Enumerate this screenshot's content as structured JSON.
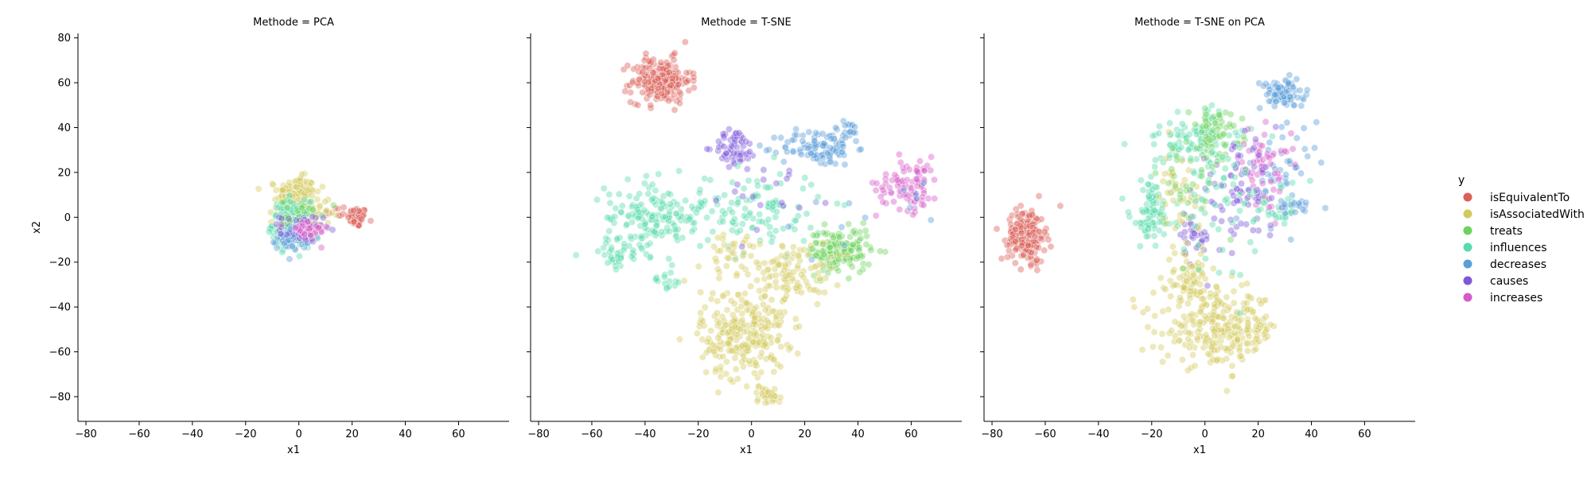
{
  "chart_data": {
    "type": "scatter",
    "facet_prefix": "Methode = ",
    "xlabel": "x1",
    "ylabel": "x2",
    "xlim": [
      -83,
      79
    ],
    "ylim": [
      -91,
      82
    ],
    "xticks": [
      -80,
      -60,
      -40,
      -20,
      0,
      20,
      40,
      60
    ],
    "yticks": [
      -80,
      -60,
      -40,
      -20,
      0,
      20,
      40,
      60,
      80
    ],
    "sharey": true,
    "legend": {
      "title": "y",
      "placement": "right",
      "entries": [
        {
          "name": "isEquivalentTo",
          "color": "#db5f57"
        },
        {
          "name": "isAssociatedWith",
          "color": "#d3ca5f"
        },
        {
          "name": "treats",
          "color": "#6dd35d"
        },
        {
          "name": "influences",
          "color": "#57dbab"
        },
        {
          "name": "decreases",
          "color": "#5a9ed8"
        },
        {
          "name": "causes",
          "color": "#7e57db"
        },
        {
          "name": "increases",
          "color": "#d65bc8"
        }
      ]
    },
    "panels": [
      {
        "method": "PCA",
        "title": "Methode = PCA",
        "clusters": [
          {
            "series": "isEquivalentTo",
            "cx": 22,
            "cy": 0,
            "sx": 1.8,
            "sy": 2.2,
            "n": 70
          },
          {
            "series": "isEquivalentTo",
            "cx": 14,
            "cy": 3,
            "sx": 2,
            "sy": 2,
            "n": 8
          },
          {
            "series": "isAssociatedWith",
            "cx": -1,
            "cy": 11,
            "sx": 3.5,
            "sy": 3.5,
            "n": 160
          },
          {
            "series": "isAssociatedWith",
            "cx": 2,
            "cy": 2,
            "sx": 5,
            "sy": 5,
            "n": 80
          },
          {
            "series": "influences",
            "cx": -3,
            "cy": -3,
            "sx": 3.5,
            "sy": 5,
            "n": 190
          },
          {
            "series": "treats",
            "cx": 1,
            "cy": 0,
            "sx": 4,
            "sy": 4,
            "n": 40
          },
          {
            "series": "decreases",
            "cx": -2,
            "cy": -9,
            "sx": 3,
            "sy": 2.5,
            "n": 90
          },
          {
            "series": "causes",
            "cx": 1,
            "cy": -5,
            "sx": 4,
            "sy": 3,
            "n": 40
          },
          {
            "series": "increases",
            "cx": 3,
            "cy": -6,
            "sx": 4,
            "sy": 2.5,
            "n": 40
          }
        ]
      },
      {
        "method": "T-SNE",
        "title": "Methode = T-SNE",
        "clusters": [
          {
            "series": "isEquivalentTo",
            "cx": -34,
            "cy": 61,
            "sx": 5.5,
            "sy": 5,
            "n": 210
          },
          {
            "series": "decreases",
            "cx": 25,
            "cy": 31,
            "sx": 7,
            "sy": 4,
            "n": 100
          },
          {
            "series": "decreases",
            "cx": 36,
            "cy": 38,
            "sx": 3,
            "sy": 2.5,
            "n": 20
          },
          {
            "series": "causes",
            "cx": -6,
            "cy": 31,
            "sx": 4,
            "sy": 4,
            "n": 60
          },
          {
            "series": "increases",
            "cx": 59,
            "cy": 15,
            "sx": 6,
            "sy": 6,
            "n": 90
          },
          {
            "series": "influences",
            "cx": -37,
            "cy": 0,
            "sx": 9,
            "sy": 8,
            "n": 160
          },
          {
            "series": "influences",
            "cx": -51,
            "cy": -17,
            "sx": 3,
            "sy": 3,
            "n": 30
          },
          {
            "series": "influences",
            "cx": -32,
            "cy": -28,
            "sx": 3,
            "sy": 2,
            "n": 15
          },
          {
            "series": "influences",
            "cx": 0,
            "cy": 3,
            "sx": 14,
            "sy": 9,
            "n": 120
          },
          {
            "series": "treats",
            "cx": 33,
            "cy": -15,
            "sx": 6,
            "sy": 5,
            "n": 150
          },
          {
            "series": "isAssociatedWith",
            "cx": -3,
            "cy": -52,
            "sx": 8,
            "sy": 10,
            "n": 260
          },
          {
            "series": "isAssociatedWith",
            "cx": 16,
            "cy": -25,
            "sx": 7,
            "sy": 7,
            "n": 100
          },
          {
            "series": "isAssociatedWith",
            "cx": 6,
            "cy": -79,
            "sx": 2.5,
            "sy": 2,
            "n": 30
          },
          {
            "series": "isAssociatedWith",
            "cx": -8,
            "cy": -18,
            "sx": 10,
            "sy": 6,
            "n": 40
          },
          {
            "series": "causes",
            "cx": 5,
            "cy": 10,
            "sx": 16,
            "sy": 10,
            "n": 20
          },
          {
            "series": "decreases",
            "cx": 45,
            "cy": 8,
            "sx": 15,
            "sy": 12,
            "n": 15
          }
        ]
      },
      {
        "method": "T-SNE on PCA",
        "title": "Methode = T-SNE on PCA",
        "clusters": [
          {
            "series": "isEquivalentTo",
            "cx": -67,
            "cy": -8,
            "sx": 3.5,
            "sy": 6,
            "n": 190
          },
          {
            "series": "decreases",
            "cx": 29,
            "cy": 55,
            "sx": 4,
            "sy": 3,
            "n": 100
          },
          {
            "series": "decreases",
            "cx": 30,
            "cy": 20,
            "sx": 6,
            "sy": 12,
            "n": 50
          },
          {
            "series": "influences",
            "cx": -5,
            "cy": 35,
            "sx": 10,
            "sy": 6,
            "n": 90
          },
          {
            "series": "treats",
            "cx": 4,
            "cy": 38,
            "sx": 5,
            "sy": 5,
            "n": 60
          },
          {
            "series": "influences",
            "cx": -20,
            "cy": 2,
            "sx": 4,
            "sy": 8,
            "n": 90
          },
          {
            "series": "influences",
            "cx": 28,
            "cy": 5,
            "sx": 6,
            "sy": 5,
            "n": 30
          },
          {
            "series": "increases",
            "cx": 22,
            "cy": 22,
            "sx": 5,
            "sy": 8,
            "n": 60
          },
          {
            "series": "causes",
            "cx": 12,
            "cy": 12,
            "sx": 8,
            "sy": 10,
            "n": 70
          },
          {
            "series": "causes",
            "cx": -4,
            "cy": -10,
            "sx": 3,
            "sy": 6,
            "n": 30
          },
          {
            "series": "isAssociatedWith",
            "cx": 6,
            "cy": -50,
            "sx": 11,
            "sy": 8,
            "n": 260
          },
          {
            "series": "isAssociatedWith",
            "cx": -6,
            "cy": -28,
            "sx": 4,
            "sy": 6,
            "n": 70
          },
          {
            "series": "isAssociatedWith",
            "cx": -10,
            "cy": 8,
            "sx": 4,
            "sy": 10,
            "n": 40
          },
          {
            "series": "influences",
            "cx": 5,
            "cy": 10,
            "sx": 8,
            "sy": 15,
            "n": 60
          },
          {
            "series": "treats",
            "cx": -6,
            "cy": 15,
            "sx": 6,
            "sy": 12,
            "n": 30
          },
          {
            "series": "decreases",
            "cx": 35,
            "cy": 5,
            "sx": 2,
            "sy": 2,
            "n": 15
          }
        ]
      }
    ]
  }
}
